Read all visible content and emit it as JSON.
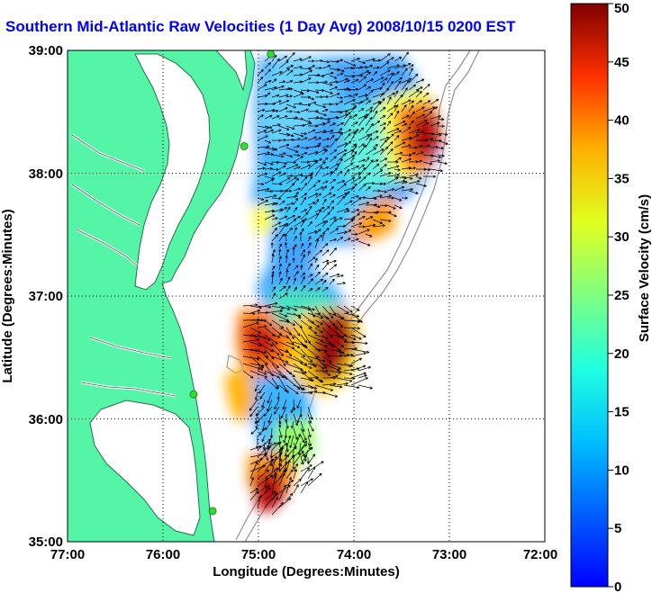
{
  "title": "Southern Mid-Atlantic Raw Velocities (1 Day Avg) 2008/10/15 0200 EST",
  "map": {
    "xlabel": "Longitude (Degrees:Minutes)",
    "ylabel": "Latitude (Degrees:Minutes)",
    "x_ticks": [
      "77:00",
      "76:00",
      "75:00",
      "74:00",
      "73:00",
      "72:00"
    ],
    "y_ticks": [
      "39:00",
      "38:00",
      "37:00",
      "36:00",
      "35:00"
    ],
    "lon_range": [
      -77,
      -72
    ],
    "lat_range": [
      35,
      39
    ],
    "grid": "dotted",
    "colors": {
      "land": "#54f5a6",
      "water": "#ffffff",
      "coastline": "#2a6e4a",
      "bathymetry": "#909090",
      "station": "#33dd33",
      "vectors": "#000000"
    }
  },
  "colorbar": {
    "label": "Surface Velocity (cm/s)",
    "ticks": [
      "0",
      "5",
      "10",
      "15",
      "20",
      "25",
      "30",
      "35",
      "40",
      "45",
      "50"
    ],
    "range": [
      0,
      50
    ],
    "colormap": "jet"
  },
  "stations": [
    {
      "lon": -74.87,
      "lat": 38.97
    },
    {
      "lon": -75.15,
      "lat": 38.22
    },
    {
      "lon": -75.68,
      "lat": 36.2
    },
    {
      "lon": -75.48,
      "lat": 35.25
    }
  ]
}
